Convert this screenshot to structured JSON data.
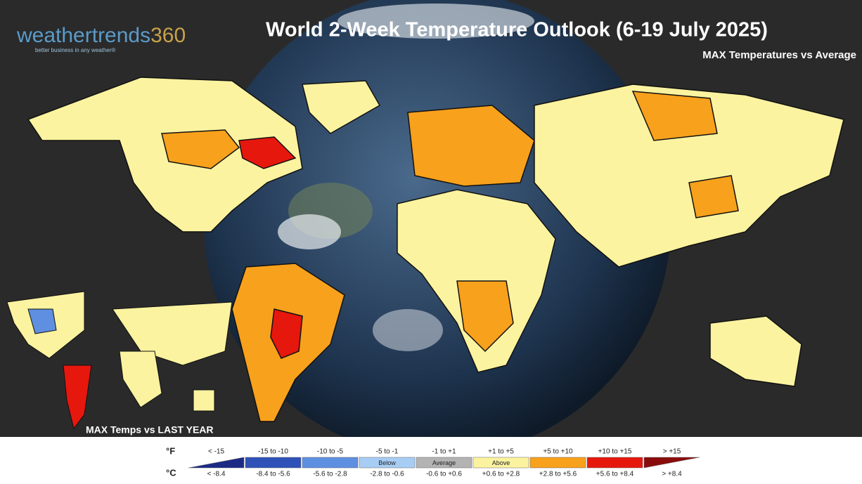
{
  "logo": {
    "name": "weathertrends",
    "number": "360",
    "tagline": "better business in any weather®"
  },
  "header": {
    "title": "World 2-Week Temperature Outlook (6-19 July 2025)",
    "subtitle": "MAX Temperatures vs Average"
  },
  "inset": {
    "label": "MAX Temps vs LAST YEAR"
  },
  "legend": {
    "unit_f": "°F",
    "unit_c": "°C",
    "bins": [
      {
        "f": "< -15",
        "c": "< -8.4",
        "color": "#1c2a86"
      },
      {
        "f": "-15 to -10",
        "c": "-8.4 to -5.6",
        "color": "#2f52b8"
      },
      {
        "f": "-10 to -5",
        "c": "-5.6 to -2.8",
        "color": "#5f8fe0"
      },
      {
        "f": "-5 to -1",
        "c": "-2.8 to -0.6",
        "color": "#a8cdf4",
        "tag": "Below"
      },
      {
        "f": "-1 to +1",
        "c": "-0.6 to +0.6",
        "color": "#b3b3b3",
        "tag": "Average"
      },
      {
        "f": "+1 to +5",
        "c": "+0.6 to +2.8",
        "color": "#fbf3a0",
        "tag": "Above"
      },
      {
        "f": "+5 to +10",
        "c": "+2.8 to +5.6",
        "color": "#f8a11c"
      },
      {
        "f": "+10 to +15",
        "c": "+5.6 to +8.4",
        "color": "#e6170d"
      },
      {
        "f": "> +15",
        "c": "> +8.4",
        "color": "#8a0b0b"
      }
    ]
  }
}
